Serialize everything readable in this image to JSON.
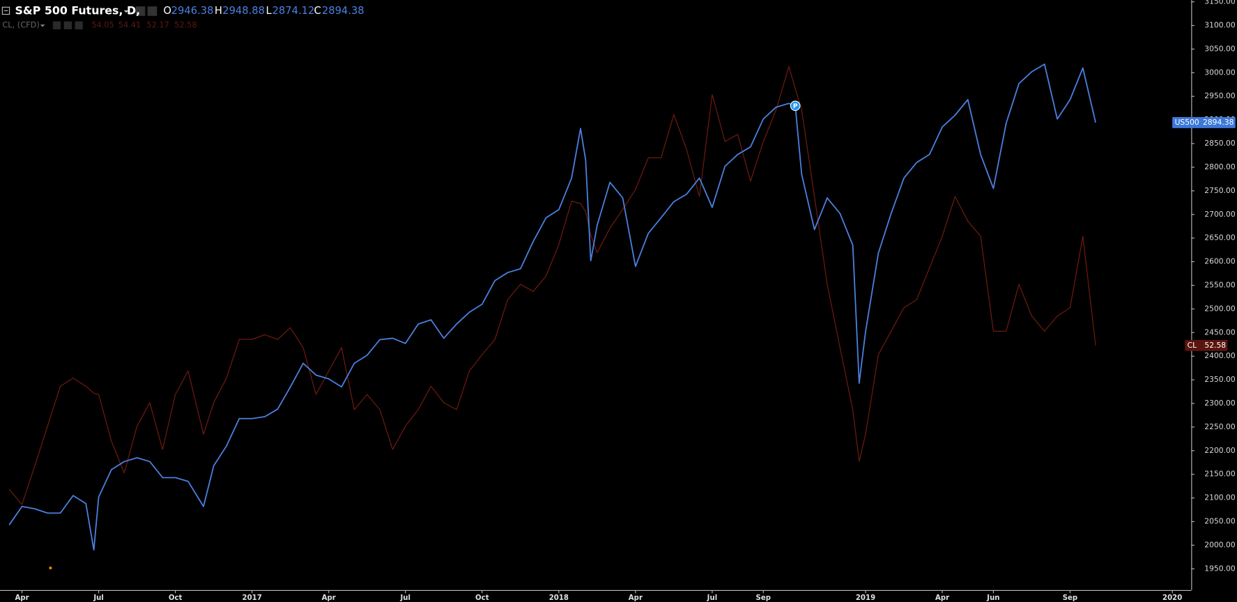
{
  "chart_data": {
    "type": "line",
    "ohlc_rows": [
      {
        "title": "S&P 500 Futures, D,",
        "fields": [
          {
            "label": "O",
            "value": 2946.38
          },
          {
            "label": "H",
            "value": 2948.88
          },
          {
            "label": "L",
            "value": 2874.12
          },
          {
            "label": "C",
            "value": 2894.38
          }
        ]
      },
      {
        "title": "CL, (CFD)",
        "fields": [
          {
            "value": 54.05
          },
          {
            "value": 54.41
          },
          {
            "value": 52.17
          },
          {
            "value": 52.58
          }
        ]
      }
    ],
    "x": [
      -0.5,
      0,
      0.5,
      1,
      1.5,
      2,
      2.5,
      2.81,
      3,
      3.5,
      4,
      4.5,
      5,
      5.5,
      6,
      6.5,
      7.1,
      7.5,
      8,
      8.5,
      9,
      9.5,
      10,
      10.5,
      11,
      11.5,
      12,
      12.5,
      13,
      13.5,
      14,
      14.5,
      15,
      15.5,
      16,
      16.5,
      17,
      17.5,
      18,
      18.5,
      19,
      19.5,
      20,
      20.5,
      21,
      21.5,
      21.85,
      22.05,
      22.25,
      22.5,
      23,
      23.5,
      24,
      24.5,
      25,
      25.5,
      26,
      26.5,
      27,
      27.5,
      28,
      28.5,
      29,
      29.5,
      30,
      30.25,
      30.5,
      31,
      31.5,
      32,
      32.5,
      32.75,
      33,
      33.5,
      34,
      34.5,
      35,
      35.5,
      36,
      36.5,
      37,
      37.5,
      38,
      38.5,
      39,
      39.5,
      40,
      40.5,
      41,
      41.5,
      42
    ],
    "series": [
      {
        "name": "CL",
        "color": "#6e1a10",
        "axis": "y2",
        "values": [
          40.3,
          39.0,
          42.3,
          45.7,
          49.1,
          49.8,
          49.1,
          48.5,
          48.4,
          44.4,
          41.7,
          45.7,
          47.7,
          43.7,
          48.4,
          50.4,
          45.0,
          47.7,
          49.8,
          53.1,
          53.1,
          53.5,
          53.1,
          54.1,
          52.4,
          48.4,
          50.4,
          52.4,
          47.1,
          48.4,
          47.1,
          43.7,
          45.7,
          47.1,
          49.1,
          47.7,
          47.1,
          50.4,
          51.8,
          53.1,
          56.5,
          57.8,
          57.2,
          58.5,
          61.2,
          64.9,
          64.7,
          64.0,
          62.0,
          60.5,
          62.6,
          64.2,
          65.9,
          68.6,
          68.6,
          72.3,
          69.3,
          65.3,
          74.0,
          70.0,
          70.6,
          66.6,
          70.0,
          72.7,
          76.4,
          74.5,
          72.7,
          65.3,
          57.8,
          52.4,
          47.1,
          42.7,
          45.0,
          51.8,
          53.8,
          55.8,
          56.5,
          59.2,
          61.9,
          65.3,
          63.2,
          61.9,
          53.8,
          53.8,
          57.8,
          55.1,
          53.8,
          55.1,
          55.8,
          61.9,
          52.58
        ]
      },
      {
        "name": "US500",
        "color": "#4a80e0",
        "values": [
          2043,
          2082,
          2077,
          2068,
          2068,
          2105,
          2088,
          1990,
          2102,
          2160,
          2177,
          2185,
          2177,
          2143,
          2143,
          2135,
          2082,
          2168,
          2210,
          2268,
          2268,
          2272,
          2288,
          2335,
          2385,
          2360,
          2352,
          2335,
          2385,
          2402,
          2435,
          2438,
          2427,
          2468,
          2477,
          2438,
          2468,
          2493,
          2510,
          2560,
          2577,
          2585,
          2643,
          2693,
          2710,
          2777,
          2882,
          2815,
          2602,
          2677,
          2768,
          2735,
          2590,
          2660,
          2693,
          2727,
          2743,
          2777,
          2715,
          2802,
          2827,
          2843,
          2902,
          2927,
          2935,
          2930,
          2785,
          2668,
          2735,
          2702,
          2635,
          2343,
          2452,
          2618,
          2702,
          2777,
          2810,
          2827,
          2885,
          2910,
          2943,
          2827,
          2755,
          2893,
          2977,
          3002,
          3018,
          2902,
          2943,
          3010,
          2894.38
        ]
      }
    ],
    "annotations": [
      {
        "text": "P",
        "x": 30.25,
        "y": 2930
      }
    ],
    "xlim": [
      -0.86,
      45.74
    ],
    "xticks": [
      {
        "value": 0,
        "label": "Apr"
      },
      {
        "value": 3,
        "label": "Jul"
      },
      {
        "value": 6,
        "label": "Oct"
      },
      {
        "value": 9,
        "label": "2017"
      },
      {
        "value": 12,
        "label": "Apr"
      },
      {
        "value": 15,
        "label": "Jul"
      },
      {
        "value": 18,
        "label": "Oct"
      },
      {
        "value": 21,
        "label": "2018"
      },
      {
        "value": 24,
        "label": "Apr"
      },
      {
        "value": 27,
        "label": "Jul"
      },
      {
        "value": 29,
        "label": "Sep"
      },
      {
        "value": 33,
        "label": "2019"
      },
      {
        "value": 36,
        "label": "Apr"
      },
      {
        "value": 38,
        "label": "Jun"
      },
      {
        "value": 41,
        "label": "Sep"
      },
      {
        "value": 45,
        "label": "2020"
      }
    ],
    "ylim": [
      1905,
      3152
    ],
    "yticks": [
      {
        "value": 1950,
        "label": "1950.00"
      },
      {
        "value": 2000,
        "label": "2000.00"
      },
      {
        "value": 2050,
        "label": "2050.00"
      },
      {
        "value": 2100,
        "label": "2100.00"
      },
      {
        "value": 2150,
        "label": "2150.00"
      },
      {
        "value": 2200,
        "label": "2200.00"
      },
      {
        "value": 2250,
        "label": "2250.00"
      },
      {
        "value": 2300,
        "label": "2300.00"
      },
      {
        "value": 2350,
        "label": "2350.00"
      },
      {
        "value": 2400,
        "label": "2400.00"
      },
      {
        "value": 2450,
        "label": "2450.00"
      },
      {
        "value": 2500,
        "label": "2500.00"
      },
      {
        "value": 2550,
        "label": "2550.00"
      },
      {
        "value": 2600,
        "label": "2600.00"
      },
      {
        "value": 2650,
        "label": "2650.00"
      },
      {
        "value": 2700,
        "label": "2700.00"
      },
      {
        "value": 2750,
        "label": "2750.00"
      },
      {
        "value": 2800,
        "label": "2800.00"
      },
      {
        "value": 2850,
        "label": "2850.00"
      },
      {
        "value": 2900,
        "label": "2900.00"
      },
      {
        "value": 2950,
        "label": "2950.00"
      },
      {
        "value": 3000,
        "label": "3000.00"
      },
      {
        "value": 3050,
        "label": "3050.00"
      },
      {
        "value": 3100,
        "label": "3100.00"
      },
      {
        "value": 3150,
        "label": "3150.00"
      }
    ],
    "y2lim": [
      31.7,
      82.0
    ],
    "grid": false
  }
}
